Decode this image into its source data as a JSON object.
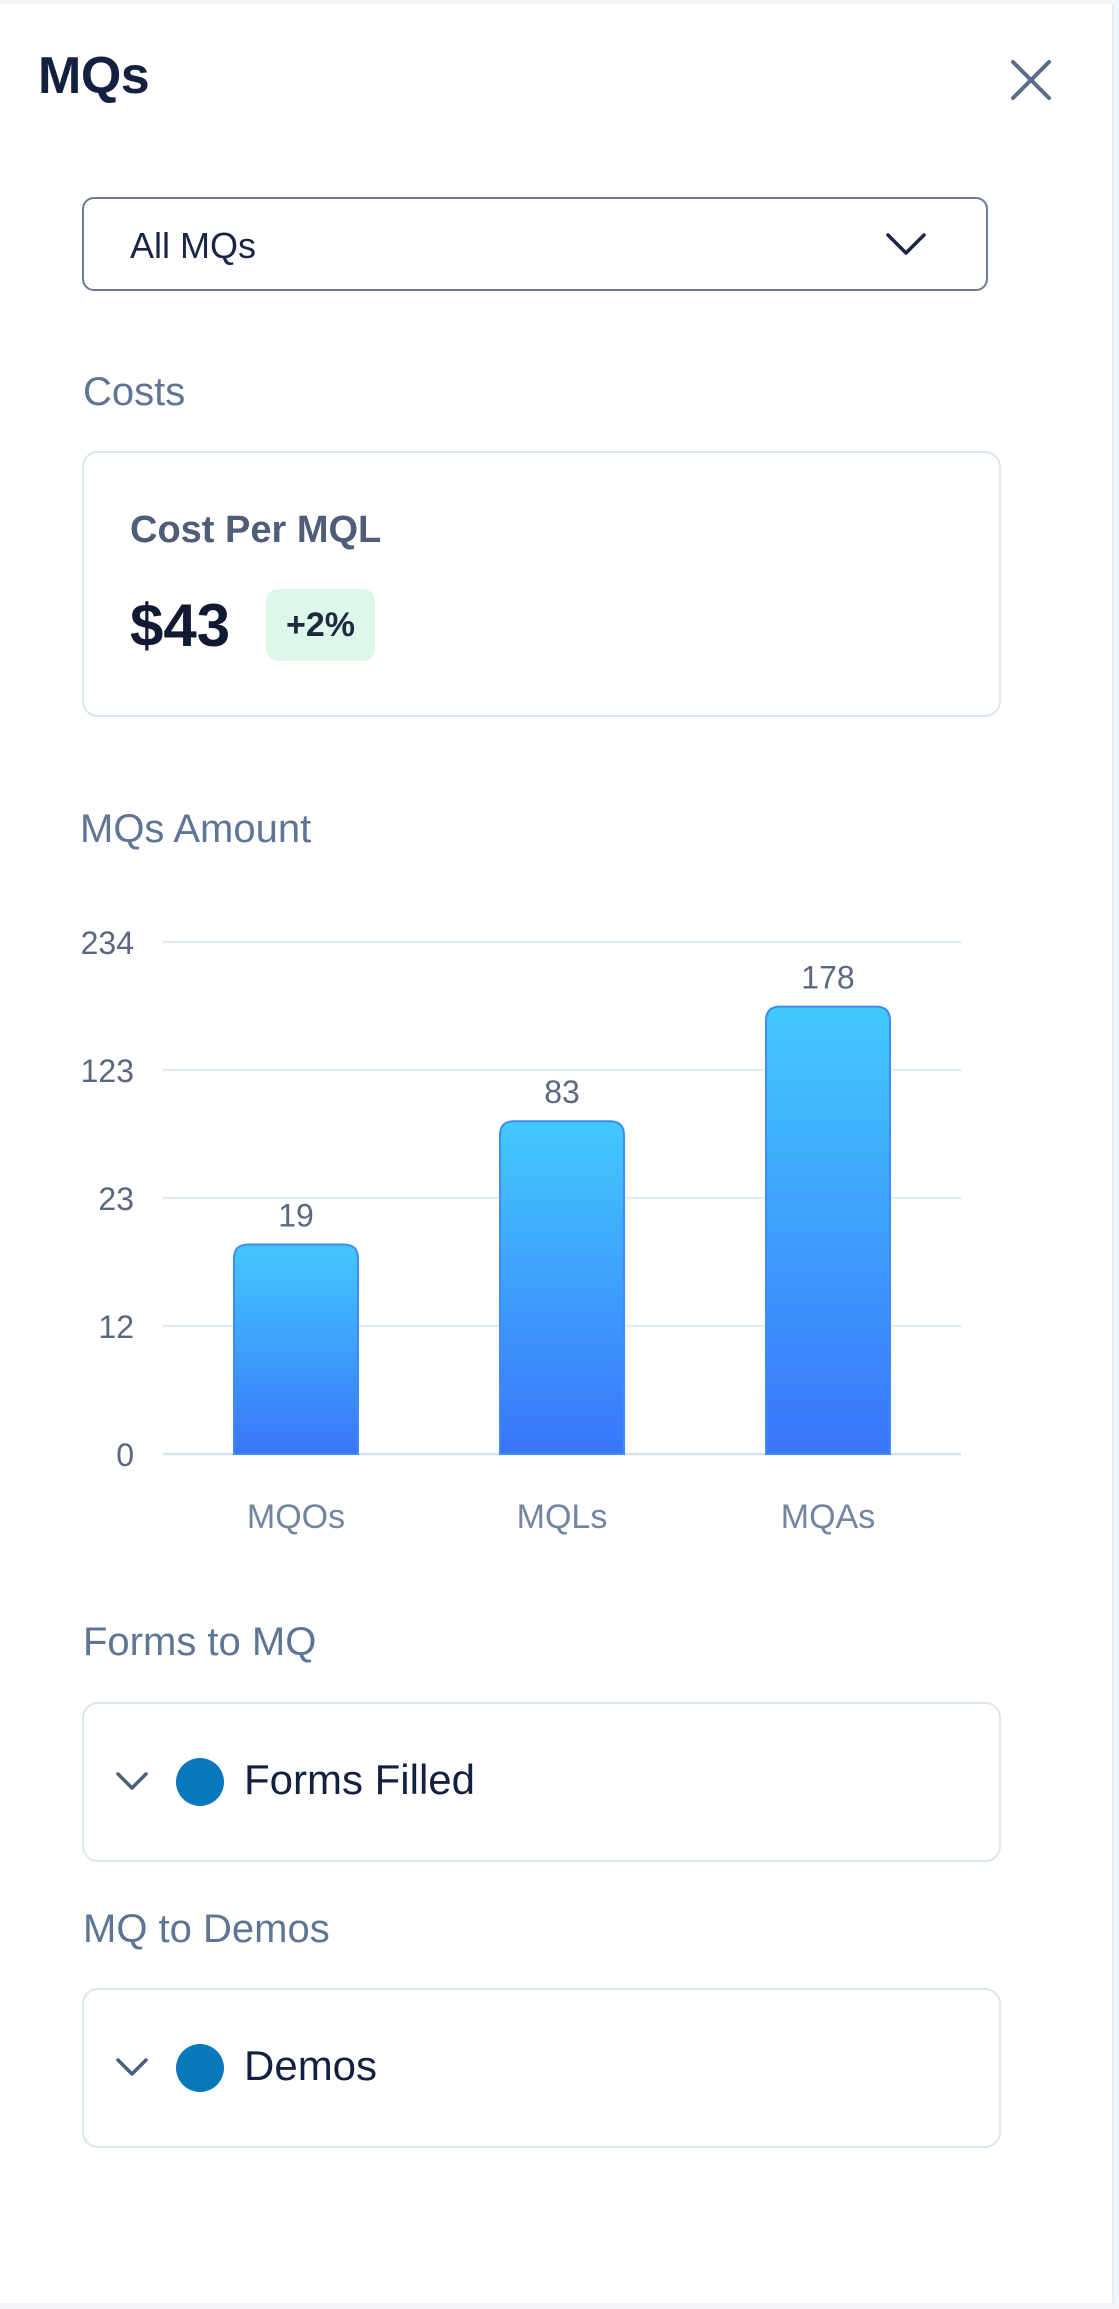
{
  "header": {
    "title": "MQs",
    "close_icon": "close-icon"
  },
  "filter": {
    "selected": "All MQs",
    "chevron_icon": "chevron-down-icon"
  },
  "costs": {
    "section_label": "Costs",
    "metric_title": "Cost Per MQL",
    "metric_value": "$43",
    "change_badge": "+2%",
    "badge_color": "#ddf8ea"
  },
  "amount_section": {
    "label": "MQs Amount"
  },
  "chart_data": {
    "type": "bar",
    "categories": [
      "MQOs",
      "MQLs",
      "MQAs"
    ],
    "values": [
      19,
      83,
      178
    ],
    "y_ticks": [
      "0",
      "12",
      "23",
      "123",
      "234"
    ],
    "y_tick_values": [
      0,
      12,
      23,
      123,
      234
    ],
    "scale": "non-linear (equal spacing between ticks)",
    "grid": true,
    "bar_gradient": [
      "#43c9fc",
      "#3a74fb"
    ]
  },
  "forms_section": {
    "label": "Forms to MQ",
    "item_label": "Forms Filled",
    "dot_color": "#0a78bd",
    "chevron_icon": "chevron-down-icon"
  },
  "demos_section": {
    "label": "MQ to Demos",
    "item_label": "Demos",
    "dot_color": "#0a78bd",
    "chevron_icon": "chevron-down-icon"
  }
}
